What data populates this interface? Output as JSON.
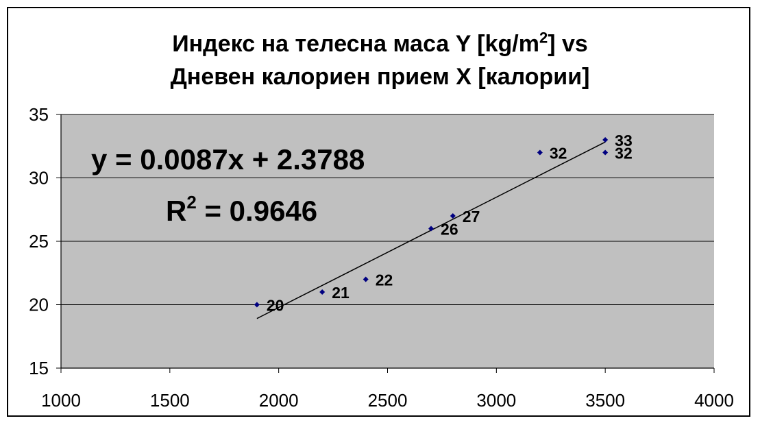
{
  "chart_data": {
    "type": "scatter",
    "title_line1_pre": "Индекс на телесна маса Y [kg/m",
    "title_line1_sup": "2",
    "title_line1_post": "] vs",
    "title_line2": "Дневен калориен прием X [калории]",
    "xlabel": "",
    "ylabel": "",
    "xlim": [
      1000,
      4000
    ],
    "ylim": [
      15,
      35
    ],
    "x_ticks": [
      1000,
      1500,
      2000,
      2500,
      3000,
      3500,
      4000
    ],
    "y_ticks": [
      15,
      20,
      25,
      30,
      35
    ],
    "grid": "horizontal",
    "points": [
      {
        "x": 1900,
        "y": 20,
        "label": "20"
      },
      {
        "x": 2200,
        "y": 21,
        "label": "21"
      },
      {
        "x": 2400,
        "y": 22,
        "label": "22"
      },
      {
        "x": 2700,
        "y": 26,
        "label": "26"
      },
      {
        "x": 2800,
        "y": 27,
        "label": "27"
      },
      {
        "x": 3200,
        "y": 32,
        "label": "32"
      },
      {
        "x": 3500,
        "y": 33,
        "label": "33"
      },
      {
        "x": 3500,
        "y": 32,
        "label": "32"
      }
    ],
    "trendline": {
      "slope": 0.0087,
      "intercept": 2.3788,
      "x_from": 1900,
      "x_to": 3500
    },
    "equation_text": "y = 0.0087x + 2.3788",
    "r2_prefix": "R",
    "r2_sup": "2",
    "r2_suffix": " = 0.9646",
    "colors": {
      "plot_bg": "#c0c0c0",
      "marker": "#000080",
      "grid": "#000000",
      "line": "#000000"
    }
  }
}
